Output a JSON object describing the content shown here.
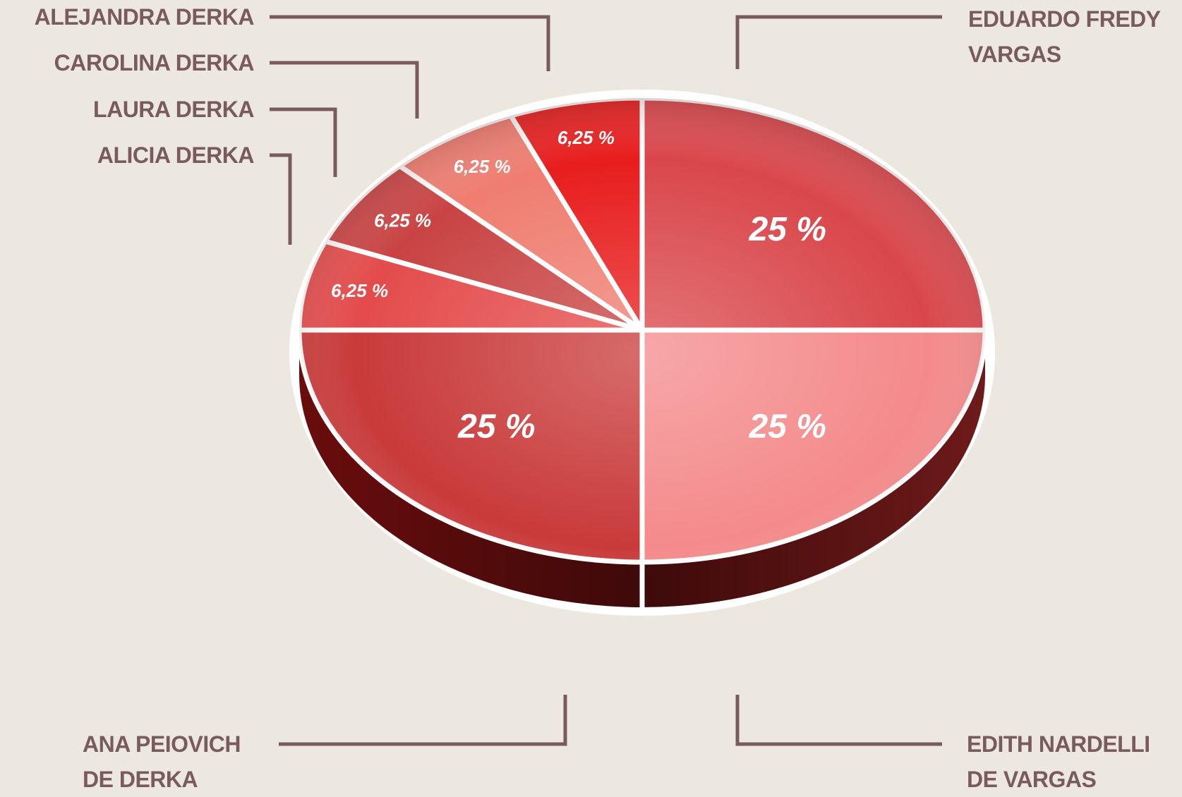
{
  "chart_data": {
    "type": "pie",
    "categories": [
      "EDUARDO FREDY VARGAS",
      "EDITH NARDELLI DE VARGAS",
      "ANA PEIOVICH DE DERKA",
      "ALICIA DERKA",
      "LAURA DERKA",
      "CAROLINA DERKA",
      "ALEJANDRA DERKA"
    ],
    "values": [
      25,
      25,
      25,
      6.25,
      6.25,
      6.25,
      6.25
    ],
    "value_labels": [
      "25 %",
      "25 %",
      "25 %",
      "6,25 %",
      "6,25 %",
      "6,25 %",
      "6,25 %"
    ],
    "colors": [
      "#d9474b",
      "#f48a8b",
      "#c93a3a",
      "#e44b4b",
      "#c94343",
      "#ef7d70",
      "#e81d1d"
    ]
  }
}
